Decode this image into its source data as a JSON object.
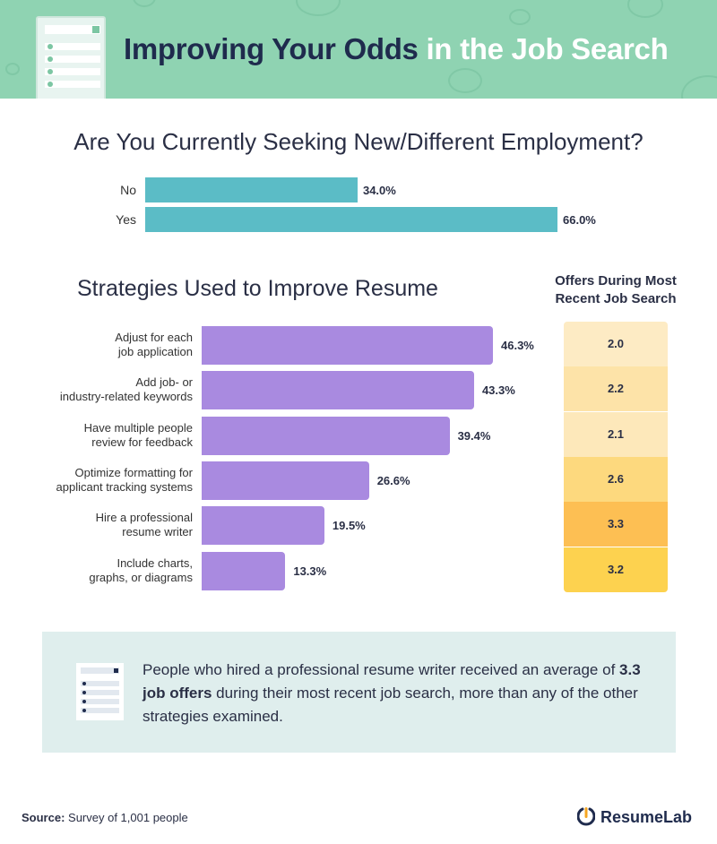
{
  "header": {
    "title_dark": "Improving Your Odds",
    "title_light": "in the Job Search"
  },
  "colors": {
    "header_bg": "#8fd3b2",
    "teal_bar": "#5bbcc6",
    "purple_bar": "#a98ae0",
    "callout_bg": "#dfeeed",
    "dark_text": "#1f2b4d",
    "logo_orange": "#f5a623"
  },
  "chart_data": [
    {
      "type": "bar",
      "orientation": "horizontal",
      "title": "Are You Currently Seeking New/Different Employment?",
      "categories": [
        "No",
        "Yes"
      ],
      "values": [
        34.0,
        66.0
      ],
      "value_labels": [
        "34.0%",
        "66.0%"
      ],
      "unit": "%"
    },
    {
      "type": "bar",
      "orientation": "horizontal",
      "title": "Strategies Used to Improve Resume",
      "categories": [
        "Adjust for each job application",
        "Add job- or industry-related keywords",
        "Have multiple people review for feedback",
        "Optimize formatting for applicant tracking systems",
        "Hire a professional resume writer",
        "Include charts, graphs, or diagrams"
      ],
      "category_lines": [
        [
          "Adjust for each",
          "job application"
        ],
        [
          "Add job- or",
          "industry-related keywords"
        ],
        [
          "Have multiple people",
          "review for feedback"
        ],
        [
          "Optimize formatting for",
          "applicant tracking systems"
        ],
        [
          "Hire a professional",
          "resume writer"
        ],
        [
          "Include charts,",
          "graphs, or diagrams"
        ]
      ],
      "values": [
        46.3,
        43.3,
        39.4,
        26.6,
        19.5,
        13.3
      ],
      "value_labels": [
        "46.3%",
        "43.3%",
        "39.4%",
        "26.6%",
        "19.5%",
        "13.3%"
      ],
      "unit": "%"
    },
    {
      "type": "heatmap",
      "title": "Offers During Most Recent Job Search",
      "values": [
        2.0,
        2.2,
        2.1,
        2.6,
        3.3,
        3.2
      ],
      "value_labels": [
        "2.0",
        "2.2",
        "2.1",
        "2.6",
        "3.3",
        "3.2"
      ],
      "cell_colors": [
        "#fdebc4",
        "#fde3a8",
        "#fde8ba",
        "#fdd97e",
        "#fdbf53",
        "#fdd24f"
      ]
    }
  ],
  "callout": {
    "text_before": "People who hired a professional resume writer received an average of ",
    "text_bold": "3.3 job offers",
    "text_after": " during their most recent job search, more than any of the other strategies examined."
  },
  "footer": {
    "source_label": "Source:",
    "source_text": "Survey of 1,001 people",
    "logo_text": "ResumeLab"
  }
}
